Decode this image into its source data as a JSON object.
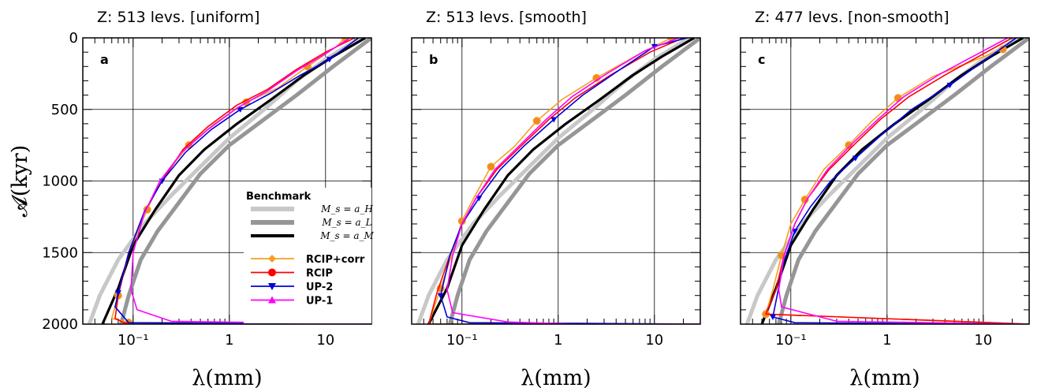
{
  "figure": {
    "ylabel": "𝓐(kyr)",
    "xlabel": "λ(mm)",
    "legend": {
      "title": "Benchmark",
      "benchmark_entries": [
        "M_s = a_H",
        "M_s = a_L",
        "M_s = a_M"
      ],
      "method_entries": [
        "RCIP+corr",
        "RCIP",
        "UP-2",
        "UP-1"
      ]
    }
  },
  "colors": {
    "a_H": "#c8c8c8",
    "a_L": "#969696",
    "a_M": "#000000",
    "RCIP+corr": "#f5a020",
    "RCIP": "#ff0000",
    "UP-2": "#0000dd",
    "UP-1": "#ff00ff",
    "marker_face": "#f28a1e"
  },
  "chart_data": [
    {
      "type": "line",
      "panel_label": "a",
      "title": "Z: 513 levs. [uniform]",
      "xlabel": "λ(mm)",
      "ylabel": "𝓐(kyr)",
      "xscale": "log",
      "xlim": [
        0.03,
        30
      ],
      "ylim": [
        2000,
        0
      ],
      "xticks": [
        "10⁻¹",
        "1",
        "10"
      ],
      "yticks": [
        "0",
        "500",
        "1000",
        "1500",
        "2000"
      ],
      "grid": true,
      "legend_position": "lower-right",
      "series": [
        {
          "name": "M_s = a_H",
          "x": [
            23,
            10,
            5,
            2.3,
            1,
            0.5,
            0.25,
            0.13,
            0.07,
            0.045,
            0.035
          ],
          "y": [
            0,
            150,
            300,
            500,
            700,
            900,
            1100,
            1300,
            1550,
            1800,
            2000
          ]
        },
        {
          "name": "M_s = a_L",
          "x": [
            30,
            12,
            5,
            2,
            1,
            0.5,
            0.3,
            0.18,
            0.12,
            0.09,
            0.075
          ],
          "y": [
            0,
            200,
            400,
            600,
            750,
            950,
            1150,
            1350,
            1550,
            1800,
            2000
          ]
        },
        {
          "name": "M_s = a_M",
          "x": [
            26,
            12,
            6,
            2.6,
            1.2,
            0.55,
            0.3,
            0.17,
            0.1,
            0.07,
            0.048
          ],
          "y": [
            0,
            130,
            260,
            440,
            600,
            780,
            960,
            1200,
            1450,
            1750,
            2000
          ]
        },
        {
          "name": "RCIP+corr",
          "x": [
            16,
            13,
            6.5,
            3.2,
            1.5,
            0.7,
            0.38,
            0.2,
            0.14,
            0.09,
            0.07,
            0.06,
            0.09,
            30
          ],
          "y": [
            0,
            60,
            200,
            350,
            450,
            600,
            750,
            980,
            1200,
            1500,
            1800,
            1960,
            1990,
            2000
          ]
        },
        {
          "name": "RCIP",
          "x": [
            20,
            10,
            5,
            2.5,
            1.2,
            0.6,
            0.33,
            0.2,
            0.13,
            0.09,
            0.07,
            0.065,
            0.08,
            30
          ],
          "y": [
            0,
            100,
            220,
            360,
            470,
            620,
            780,
            1000,
            1220,
            1500,
            1800,
            1960,
            1990,
            2000
          ]
        },
        {
          "name": "UP-2",
          "x": [
            22,
            11,
            5.5,
            2.8,
            1.3,
            0.65,
            0.35,
            0.2,
            0.13,
            0.09,
            0.07,
            0.065,
            0.09,
            30
          ],
          "y": [
            0,
            150,
            260,
            380,
            500,
            640,
            800,
            1000,
            1220,
            1500,
            1780,
            1880,
            1990,
            2000
          ]
        },
        {
          "name": "UP-1",
          "x": [
            18,
            9.5,
            5,
            2.5,
            1.2,
            0.6,
            0.32,
            0.19,
            0.13,
            0.1,
            0.095,
            0.11,
            0.25,
            30
          ],
          "y": [
            0,
            120,
            230,
            370,
            490,
            640,
            800,
            1000,
            1230,
            1500,
            1760,
            1900,
            1980,
            2000
          ]
        }
      ]
    },
    {
      "type": "line",
      "panel_label": "b",
      "title": "Z: 513 levs. [smooth]",
      "xlabel": "λ(mm)",
      "xscale": "log",
      "xlim": [
        0.03,
        30
      ],
      "ylim": [
        2000,
        0
      ],
      "xticks": [
        "10⁻¹",
        "1",
        "10"
      ],
      "grid": true,
      "series": [
        {
          "name": "M_s = a_H",
          "x": [
            23,
            10,
            5,
            2.3,
            1,
            0.5,
            0.25,
            0.13,
            0.07,
            0.045,
            0.035
          ],
          "y": [
            0,
            150,
            300,
            500,
            700,
            900,
            1100,
            1300,
            1550,
            1800,
            2000
          ]
        },
        {
          "name": "M_s = a_L",
          "x": [
            30,
            12,
            5,
            2,
            1,
            0.5,
            0.3,
            0.18,
            0.12,
            0.09,
            0.075
          ],
          "y": [
            0,
            200,
            400,
            600,
            750,
            950,
            1150,
            1350,
            1550,
            1800,
            2000
          ]
        },
        {
          "name": "M_s = a_M",
          "x": [
            26,
            12,
            6,
            2.6,
            1.2,
            0.55,
            0.3,
            0.17,
            0.1,
            0.07,
            0.045
          ],
          "y": [
            0,
            130,
            260,
            440,
            600,
            780,
            960,
            1200,
            1450,
            1750,
            2000
          ]
        },
        {
          "name": "RCIP+corr",
          "x": [
            15,
            7.5,
            2.5,
            1.1,
            0.6,
            0.35,
            0.2,
            0.13,
            0.1,
            0.08,
            0.06,
            0.045,
            30
          ],
          "y": [
            0,
            100,
            280,
            430,
            580,
            760,
            900,
            1130,
            1280,
            1500,
            1750,
            2000,
            2000
          ]
        },
        {
          "name": "RCIP",
          "x": [
            20,
            9,
            3.5,
            1.5,
            0.8,
            0.42,
            0.23,
            0.14,
            0.1,
            0.075,
            0.055,
            0.045,
            30
          ],
          "y": [
            0,
            100,
            260,
            420,
            570,
            750,
            920,
            1120,
            1300,
            1520,
            1780,
            2000,
            2000
          ]
        },
        {
          "name": "UP-2",
          "x": [
            22,
            10,
            4,
            1.8,
            0.9,
            0.45,
            0.25,
            0.15,
            0.1,
            0.075,
            0.06,
            0.07,
            0.12,
            30
          ],
          "y": [
            0,
            60,
            240,
            400,
            570,
            750,
            920,
            1120,
            1300,
            1520,
            1800,
            1950,
            1990,
            2000
          ]
        },
        {
          "name": "UP-1",
          "x": [
            18,
            8,
            3.2,
            1.4,
            0.75,
            0.4,
            0.22,
            0.14,
            0.1,
            0.08,
            0.07,
            0.08,
            0.3,
            1.6,
            30
          ],
          "y": [
            0,
            90,
            250,
            410,
            570,
            750,
            920,
            1120,
            1300,
            1520,
            1760,
            1920,
            1985,
            2000,
            2000
          ]
        }
      ]
    },
    {
      "type": "line",
      "panel_label": "c",
      "title": "Z: 477 levs. [non-smooth]",
      "xlabel": "λ(mm)",
      "xscale": "log",
      "xlim": [
        0.03,
        30
      ],
      "ylim": [
        2000,
        0
      ],
      "xticks": [
        "10⁻¹",
        "1",
        "10"
      ],
      "grid": true,
      "series": [
        {
          "name": "M_s = a_H",
          "x": [
            23,
            10,
            5,
            2.3,
            1,
            0.5,
            0.25,
            0.13,
            0.07,
            0.045,
            0.035
          ],
          "y": [
            0,
            150,
            300,
            500,
            700,
            900,
            1100,
            1300,
            1550,
            1800,
            2000
          ]
        },
        {
          "name": "M_s = a_L",
          "x": [
            30,
            12,
            5,
            2,
            1,
            0.5,
            0.3,
            0.18,
            0.12,
            0.09,
            0.075
          ],
          "y": [
            0,
            200,
            400,
            600,
            750,
            950,
            1150,
            1350,
            1550,
            1800,
            2000
          ]
        },
        {
          "name": "M_s = a_M",
          "x": [
            26,
            12,
            6,
            2.6,
            1.2,
            0.55,
            0.3,
            0.17,
            0.1,
            0.07,
            0.05
          ],
          "y": [
            0,
            130,
            260,
            440,
            600,
            780,
            960,
            1200,
            1450,
            1750,
            2000
          ]
        },
        {
          "name": "RCIP+corr",
          "x": [
            16,
            3,
            1.3,
            0.7,
            0.4,
            0.22,
            0.14,
            0.1,
            0.08,
            0.065,
            0.055,
            30
          ],
          "y": [
            80,
            270,
            420,
            580,
            750,
            920,
            1130,
            1300,
            1520,
            1760,
            1930,
            2000
          ]
        },
        {
          "name": "RCIP",
          "x": [
            20,
            4,
            1.7,
            0.85,
            0.45,
            0.25,
            0.15,
            0.11,
            0.085,
            0.07,
            0.055,
            30
          ],
          "y": [
            0,
            260,
            410,
            570,
            750,
            920,
            1120,
            1300,
            1520,
            1760,
            1930,
            2000
          ]
        },
        {
          "name": "UP-2",
          "x": [
            22,
            4.5,
            1.8,
            0.9,
            0.47,
            0.26,
            0.16,
            0.11,
            0.085,
            0.072,
            0.065,
            0.11,
            30
          ],
          "y": [
            0,
            330,
            500,
            670,
            840,
            1000,
            1180,
            1350,
            1560,
            1800,
            1950,
            1990,
            2000
          ]
        },
        {
          "name": "UP-1",
          "x": [
            18,
            3.6,
            1.5,
            0.8,
            0.42,
            0.24,
            0.15,
            0.11,
            0.085,
            0.075,
            0.08,
            0.3,
            30
          ],
          "y": [
            0,
            250,
            410,
            570,
            750,
            920,
            1120,
            1300,
            1520,
            1760,
            1880,
            1980,
            2000
          ]
        }
      ]
    }
  ]
}
